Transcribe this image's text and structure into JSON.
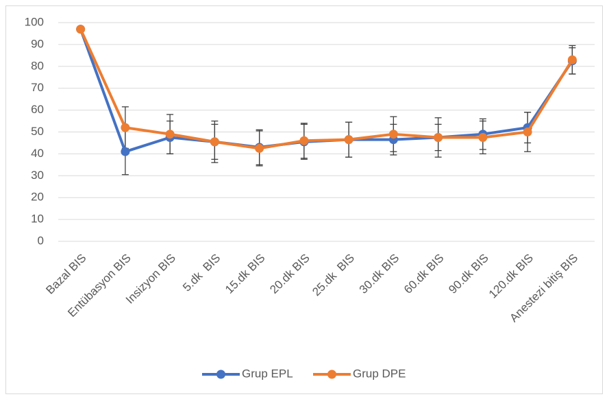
{
  "chart_data": {
    "type": "line",
    "categories": [
      "Bazal BIS",
      "Entübasyon BIS",
      "Insizyon BIS",
      "5.dk  BIS",
      "15.dk BIS",
      "20.dk BIS",
      "25.dk  BIS",
      "30.dk BIS",
      "60.dk BIS",
      "90.dk BIS",
      "120.dk BIS",
      "Anestezi bitiş BIS"
    ],
    "series": [
      {
        "name": "Grup EPL",
        "color": "#4472c4",
        "values": [
          97,
          41,
          47.5,
          45.5,
          43,
          45.5,
          46.5,
          46.5,
          47.5,
          49,
          52,
          82.5
        ],
        "errors": [
          1,
          10.5,
          7.5,
          9.5,
          8,
          8,
          8,
          7,
          6,
          7,
          7,
          6
        ]
      },
      {
        "name": "Grup DPE",
        "color": "#ed7d31",
        "values": [
          97,
          52,
          49,
          45.5,
          42.5,
          46,
          46.5,
          49,
          47.5,
          47.5,
          50,
          83
        ],
        "errors": [
          1,
          9.5,
          9,
          8,
          8,
          8,
          8,
          8,
          9,
          7.5,
          9,
          6.5
        ]
      }
    ],
    "ylim": [
      0,
      100
    ],
    "yticks": [
      0,
      10,
      20,
      30,
      40,
      50,
      60,
      70,
      80,
      90,
      100
    ],
    "grid": true,
    "legend": "bottom",
    "error_bar_color": "#404040"
  }
}
